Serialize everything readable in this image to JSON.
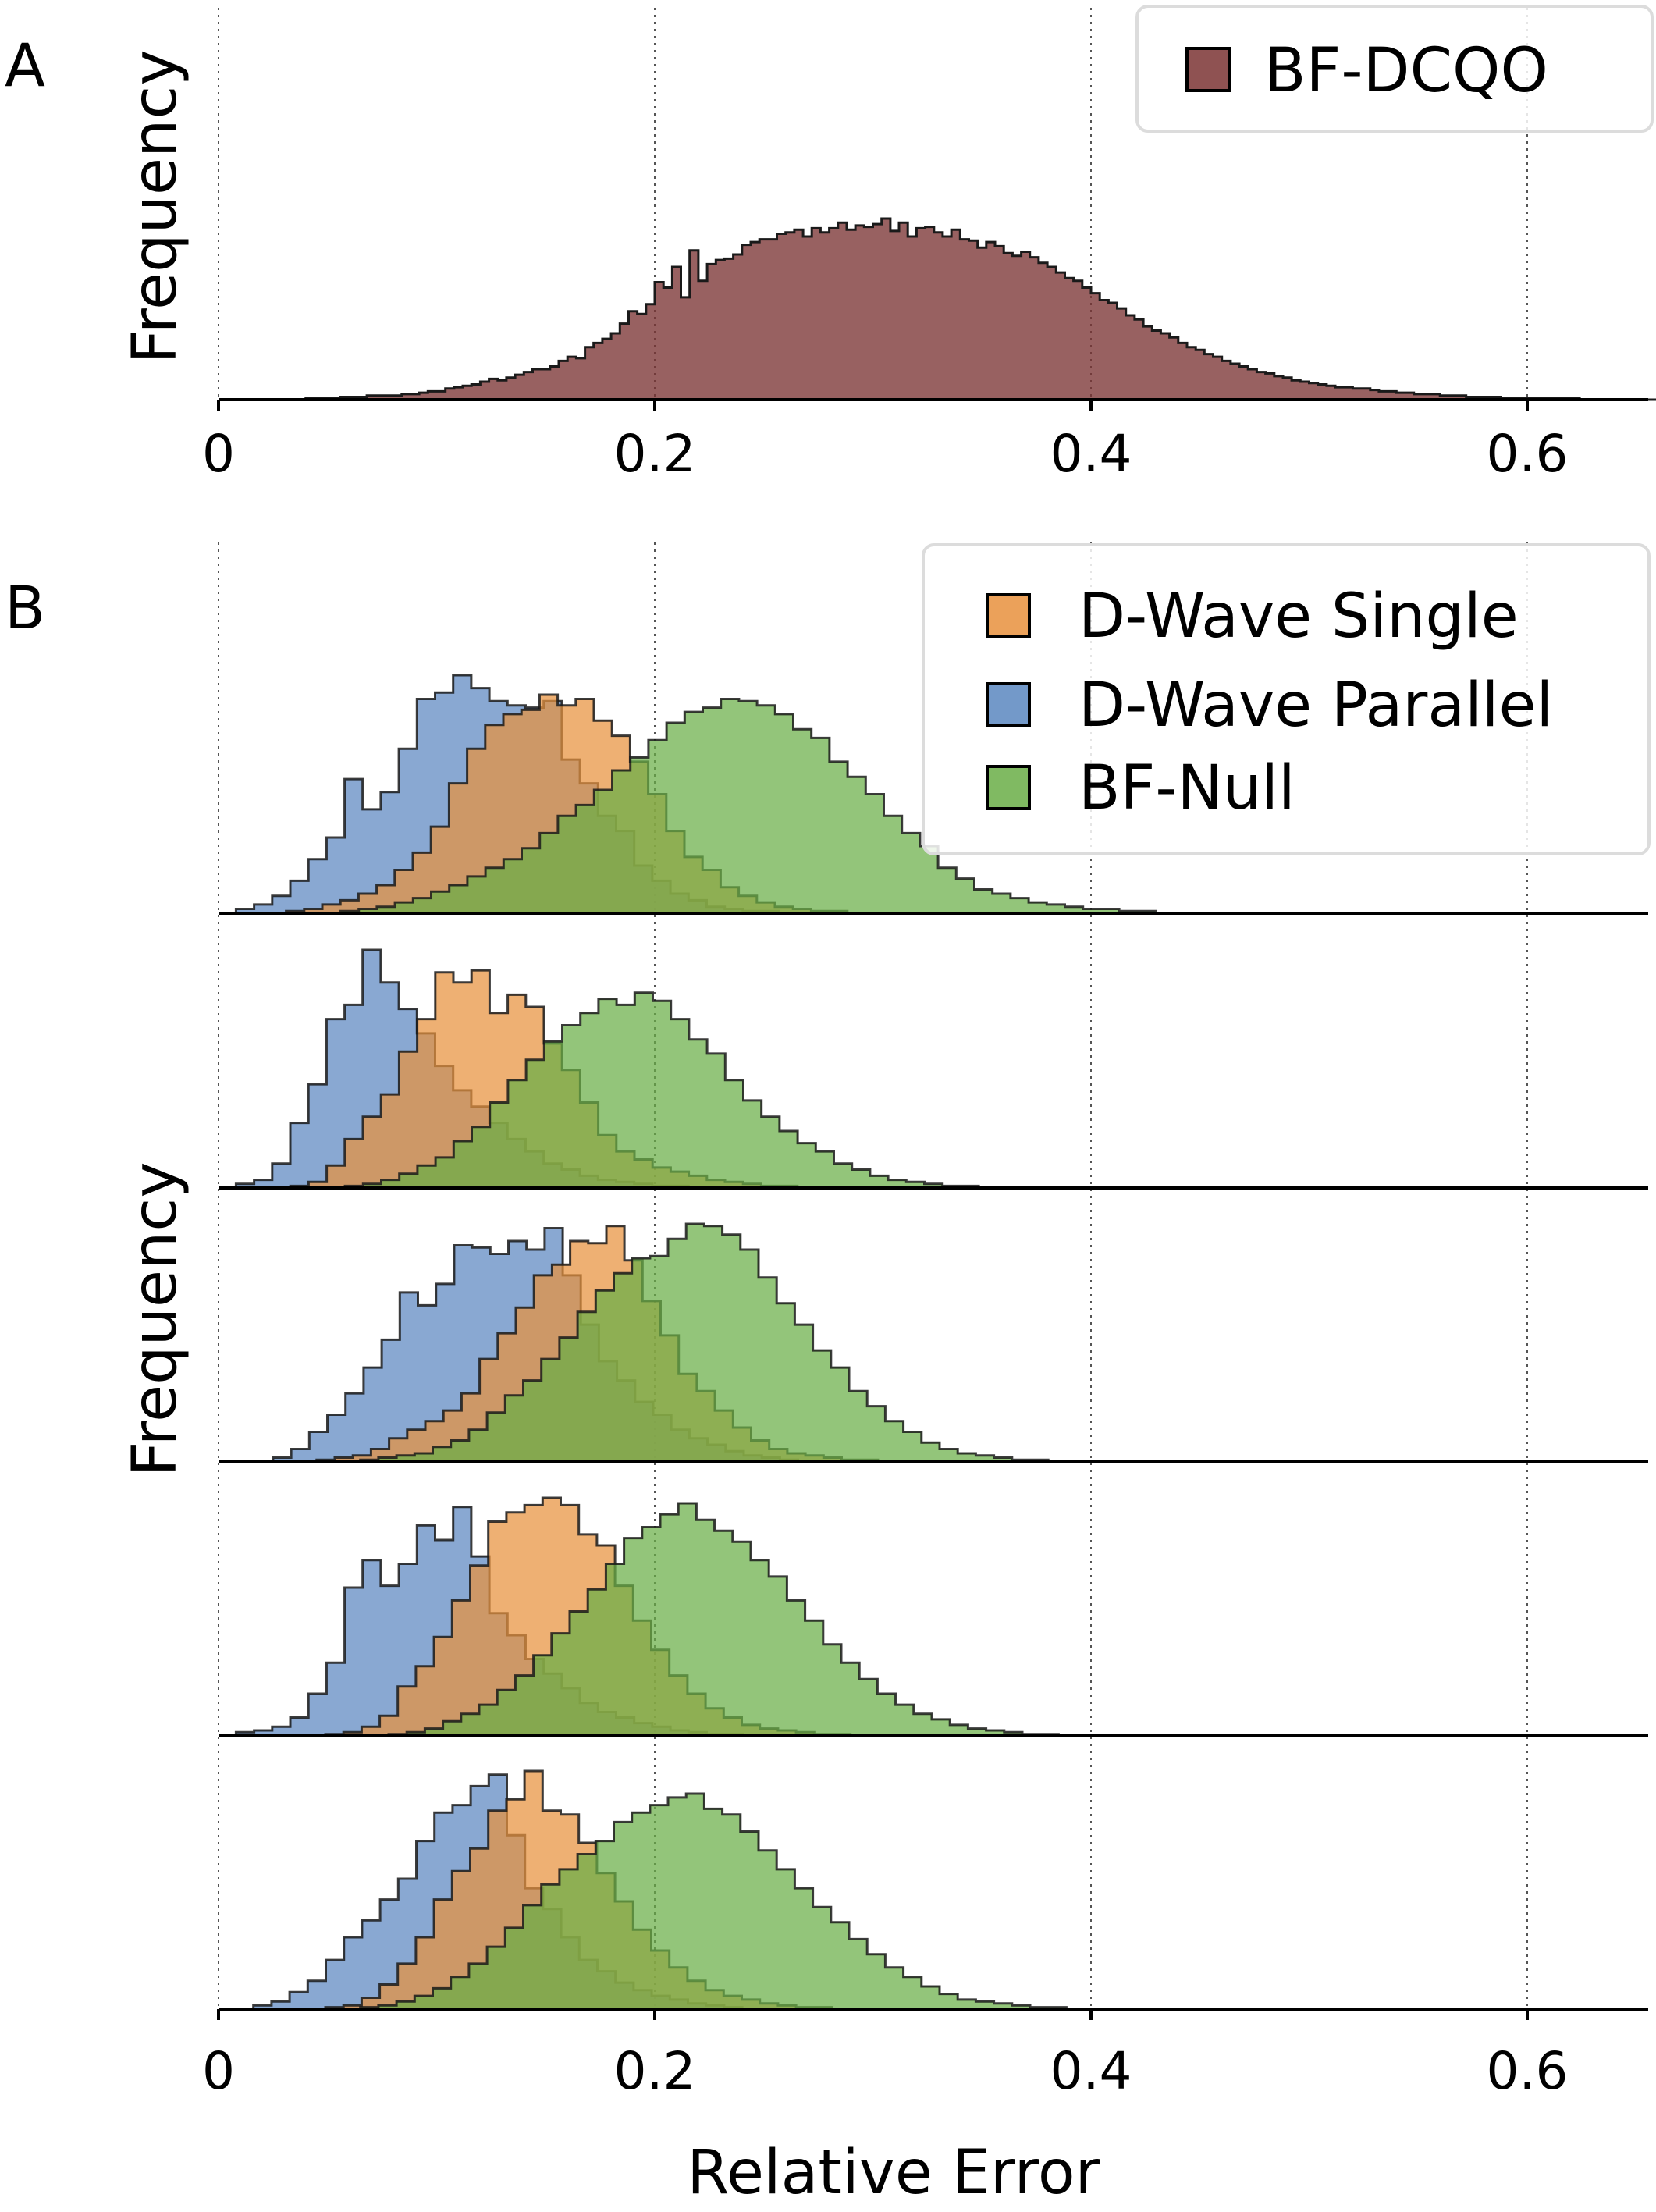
{
  "chart_data": [
    {
      "panel_label": "A",
      "type": "histogram",
      "title": "",
      "xlabel": "",
      "ylabel": "Frequency",
      "xlim": [
        0,
        0.655
      ],
      "xticks": [
        "0",
        "0.2",
        "0.4",
        "0.6"
      ],
      "xtick_values": [
        0,
        0.2,
        0.4,
        0.6
      ],
      "grid": "vertical dotted at x ticks",
      "legend_position": "top-right",
      "series": [
        {
          "name": "BF-DCQO",
          "color": "#7b3434",
          "bin_start": 0.0,
          "bin_width": 0.004,
          "counts": [
            0,
            0,
            0,
            0,
            0,
            0,
            0,
            0,
            0,
            0,
            1,
            1,
            1,
            1,
            2,
            2,
            2,
            3,
            3,
            3,
            3,
            4,
            4,
            5,
            6,
            6,
            8,
            9,
            10,
            11,
            13,
            15,
            14,
            16,
            18,
            20,
            22,
            22,
            24,
            28,
            31,
            30,
            38,
            41,
            44,
            48,
            55,
            64,
            62,
            69,
            85,
            81,
            96,
            74,
            108,
            86,
            98,
            101,
            102,
            105,
            112,
            114,
            116,
            116,
            120,
            121,
            123,
            118,
            124,
            121,
            124,
            128,
            123,
            126,
            125,
            127,
            131,
            122,
            128,
            118,
            124,
            125,
            121,
            118,
            123,
            116,
            115,
            110,
            114,
            111,
            106,
            104,
            107,
            103,
            99,
            96,
            92,
            88,
            86,
            81,
            77,
            72,
            70,
            66,
            61,
            58,
            53,
            50,
            48,
            45,
            41,
            38,
            36,
            33,
            31,
            28,
            26,
            24,
            22,
            20,
            19,
            17,
            16,
            14,
            13,
            12,
            11,
            10,
            9,
            9,
            8,
            8,
            7,
            6,
            6,
            5,
            5,
            4,
            4,
            4,
            3,
            3,
            3,
            2,
            2,
            2,
            2,
            1,
            1,
            1,
            1,
            1,
            1,
            1,
            1,
            1,
            0,
            0,
            0,
            0,
            0,
            0,
            0,
            0,
            0,
            0,
            0,
            0
          ]
        }
      ]
    },
    {
      "panel_label": "B",
      "type": "histogram-stack",
      "title": "",
      "xlabel": "Relative Error",
      "ylabel": "Frequency",
      "xlim": [
        0,
        0.655
      ],
      "xticks": [
        "0",
        "0.2",
        "0.4",
        "0.6"
      ],
      "xtick_values": [
        0,
        0.2,
        0.4,
        0.6
      ],
      "grid": "vertical dotted at x ticks",
      "legend_position": "top-right",
      "series_styles": [
        {
          "name": "D-Wave Single",
          "color": "#e8913d"
        },
        {
          "name": "D-Wave Parallel",
          "color": "#5b87c0"
        },
        {
          "name": "BF-Null",
          "color": "#6aae46"
        }
      ],
      "rows": [
        {
          "bin_width": 0.0083,
          "series": [
            {
              "name": "D-Wave Parallel",
              "bin_start": 0.008,
              "counts": [
                2,
                4,
                8,
                15,
                25,
                35,
                62,
                48,
                56,
                76,
                99,
                102,
                110,
                104,
                98,
                96,
                95,
                98,
                71,
                60,
                45,
                38,
                22,
                15,
                9,
                6,
                3,
                2,
                1,
                1
              ]
            },
            {
              "name": "D-Wave Single",
              "bin_start": 0.031,
              "counts": [
                1,
                2,
                4,
                6,
                9,
                13,
                20,
                28,
                40,
                60,
                76,
                87,
                92,
                94,
                101,
                96,
                99,
                89,
                82,
                70,
                55,
                38,
                26,
                20,
                12,
                8,
                5,
                3,
                2,
                1,
                1
              ]
            },
            {
              "name": "BF-Null",
              "bin_start": 0.056,
              "counts": [
                1,
                2,
                3,
                5,
                7,
                10,
                13,
                17,
                21,
                25,
                30,
                37,
                45,
                50,
                57,
                66,
                72,
                80,
                88,
                93,
                95,
                99,
                98,
                96,
                92,
                85,
                81,
                70,
                63,
                55,
                45,
                37,
                31,
                21,
                16,
                11,
                9,
                7,
                5,
                4,
                3,
                2,
                2,
                1,
                1
              ]
            }
          ]
        },
        {
          "bin_width": 0.0083,
          "series": [
            {
              "name": "D-Wave Parallel",
              "bin_start": 0.008,
              "counts": [
                2,
                4,
                12,
                32,
                51,
                83,
                90,
                117,
                101,
                88,
                76,
                60,
                48,
                40,
                32,
                24,
                18,
                12,
                9,
                6,
                4,
                3,
                2,
                1,
                1
              ]
            },
            {
              "name": "D-Wave Single",
              "bin_start": 0.033,
              "counts": [
                1,
                3,
                11,
                24,
                35,
                46,
                67,
                83,
                106,
                101,
                107,
                86,
                95,
                89,
                71,
                58,
                42,
                26,
                18,
                14,
                10,
                8,
                6,
                4,
                3,
                2,
                1,
                1
              ]
            },
            {
              "name": "BF-Null",
              "bin_start": 0.058,
              "counts": [
                1,
                2,
                4,
                7,
                11,
                15,
                23,
                30,
                42,
                53,
                63,
                72,
                80,
                86,
                93,
                90,
                96,
                92,
                83,
                73,
                66,
                53,
                43,
                35,
                28,
                22,
                18,
                12,
                9,
                6,
                4,
                3,
                2,
                1,
                1
              ]
            }
          ]
        },
        {
          "bin_width": 0.0083,
          "series": [
            {
              "name": "D-Wave Parallel",
              "bin_start": 0.025,
              "counts": [
                2,
                6,
                14,
                22,
                32,
                44,
                57,
                79,
                73,
                83,
                101,
                100,
                97,
                103,
                99,
                109,
                87,
                64,
                47,
                38,
                28,
                22,
                15,
                11,
                8,
                5,
                3,
                2,
                1
              ]
            },
            {
              "name": "D-Wave Single",
              "bin_start": 0.045,
              "counts": [
                1,
                2,
                3,
                6,
                11,
                15,
                19,
                24,
                32,
                48,
                60,
                72,
                87,
                92,
                103,
                102,
                110,
                94,
                75,
                59,
                41,
                33,
                24,
                16,
                10,
                6,
                4,
                3,
                2,
                1,
                1
              ]
            },
            {
              "name": "BF-Null",
              "bin_start": 0.065,
              "counts": [
                1,
                2,
                3,
                4,
                7,
                10,
                15,
                23,
                31,
                38,
                48,
                58,
                70,
                80,
                88,
                95,
                96,
                104,
                111,
                110,
                106,
                99,
                86,
                74,
                64,
                52,
                44,
                33,
                26,
                19,
                14,
                9,
                6,
                4,
                3,
                2,
                1,
                1
              ]
            }
          ]
        },
        {
          "bin_width": 0.0083,
          "series": [
            {
              "name": "D-Wave Parallel",
              "bin_start": 0.008,
              "counts": [
                2,
                3,
                5,
                10,
                23,
                40,
                81,
                96,
                82,
                94,
                115,
                107,
                125,
                98,
                67,
                55,
                42,
                34,
                26,
                18,
                13,
                10,
                7,
                5,
                3,
                2,
                1,
                1
              ]
            },
            {
              "name": "D-Wave Single",
              "bin_start": 0.049,
              "counts": [
                1,
                2,
                5,
                11,
                27,
                38,
                54,
                74,
                93,
                117,
                122,
                126,
                130,
                126,
                110,
                104,
                82,
                63,
                47,
                33,
                23,
                15,
                10,
                6,
                4,
                3,
                2,
                1,
                1
              ]
            },
            {
              "name": "BF-Null",
              "bin_start": 0.078,
              "counts": [
                1,
                2,
                4,
                8,
                12,
                17,
                25,
                33,
                44,
                56,
                68,
                80,
                94,
                108,
                114,
                121,
                127,
                118,
                112,
                106,
                96,
                87,
                74,
                63,
                50,
                40,
                31,
                23,
                17,
                12,
                9,
                6,
                4,
                3,
                2,
                1,
                1
              ]
            }
          ]
        },
        {
          "bin_width": 0.0083,
          "series": [
            {
              "name": "D-Wave Parallel",
              "bin_start": 0.016,
              "counts": [
                2,
                4,
                9,
                15,
                26,
                38,
                47,
                58,
                69,
                89,
                104,
                108,
                118,
                124,
                92,
                64,
                53,
                38,
                26,
                20,
                14,
                10,
                7,
                5,
                3,
                2,
                1
              ]
            },
            {
              "name": "D-Wave Single",
              "bin_start": 0.049,
              "counts": [
                1,
                2,
                6,
                13,
                24,
                38,
                58,
                73,
                85,
                105,
                111,
                126,
                105,
                103,
                88,
                72,
                57,
                42,
                31,
                22,
                15,
                10,
                7,
                5,
                3,
                2,
                1,
                1
              ]
            },
            {
              "name": "BF-Null",
              "bin_start": 0.065,
              "counts": [
                1,
                2,
                4,
                7,
                11,
                17,
                24,
                33,
                43,
                55,
                66,
                74,
                82,
                89,
                99,
                104,
                108,
                112,
                114,
                106,
                103,
                94,
                84,
                74,
                64,
                54,
                46,
                37,
                29,
                22,
                17,
                12,
                8,
                5,
                4,
                3,
                2,
                1,
                1
              ]
            }
          ]
        }
      ]
    }
  ]
}
